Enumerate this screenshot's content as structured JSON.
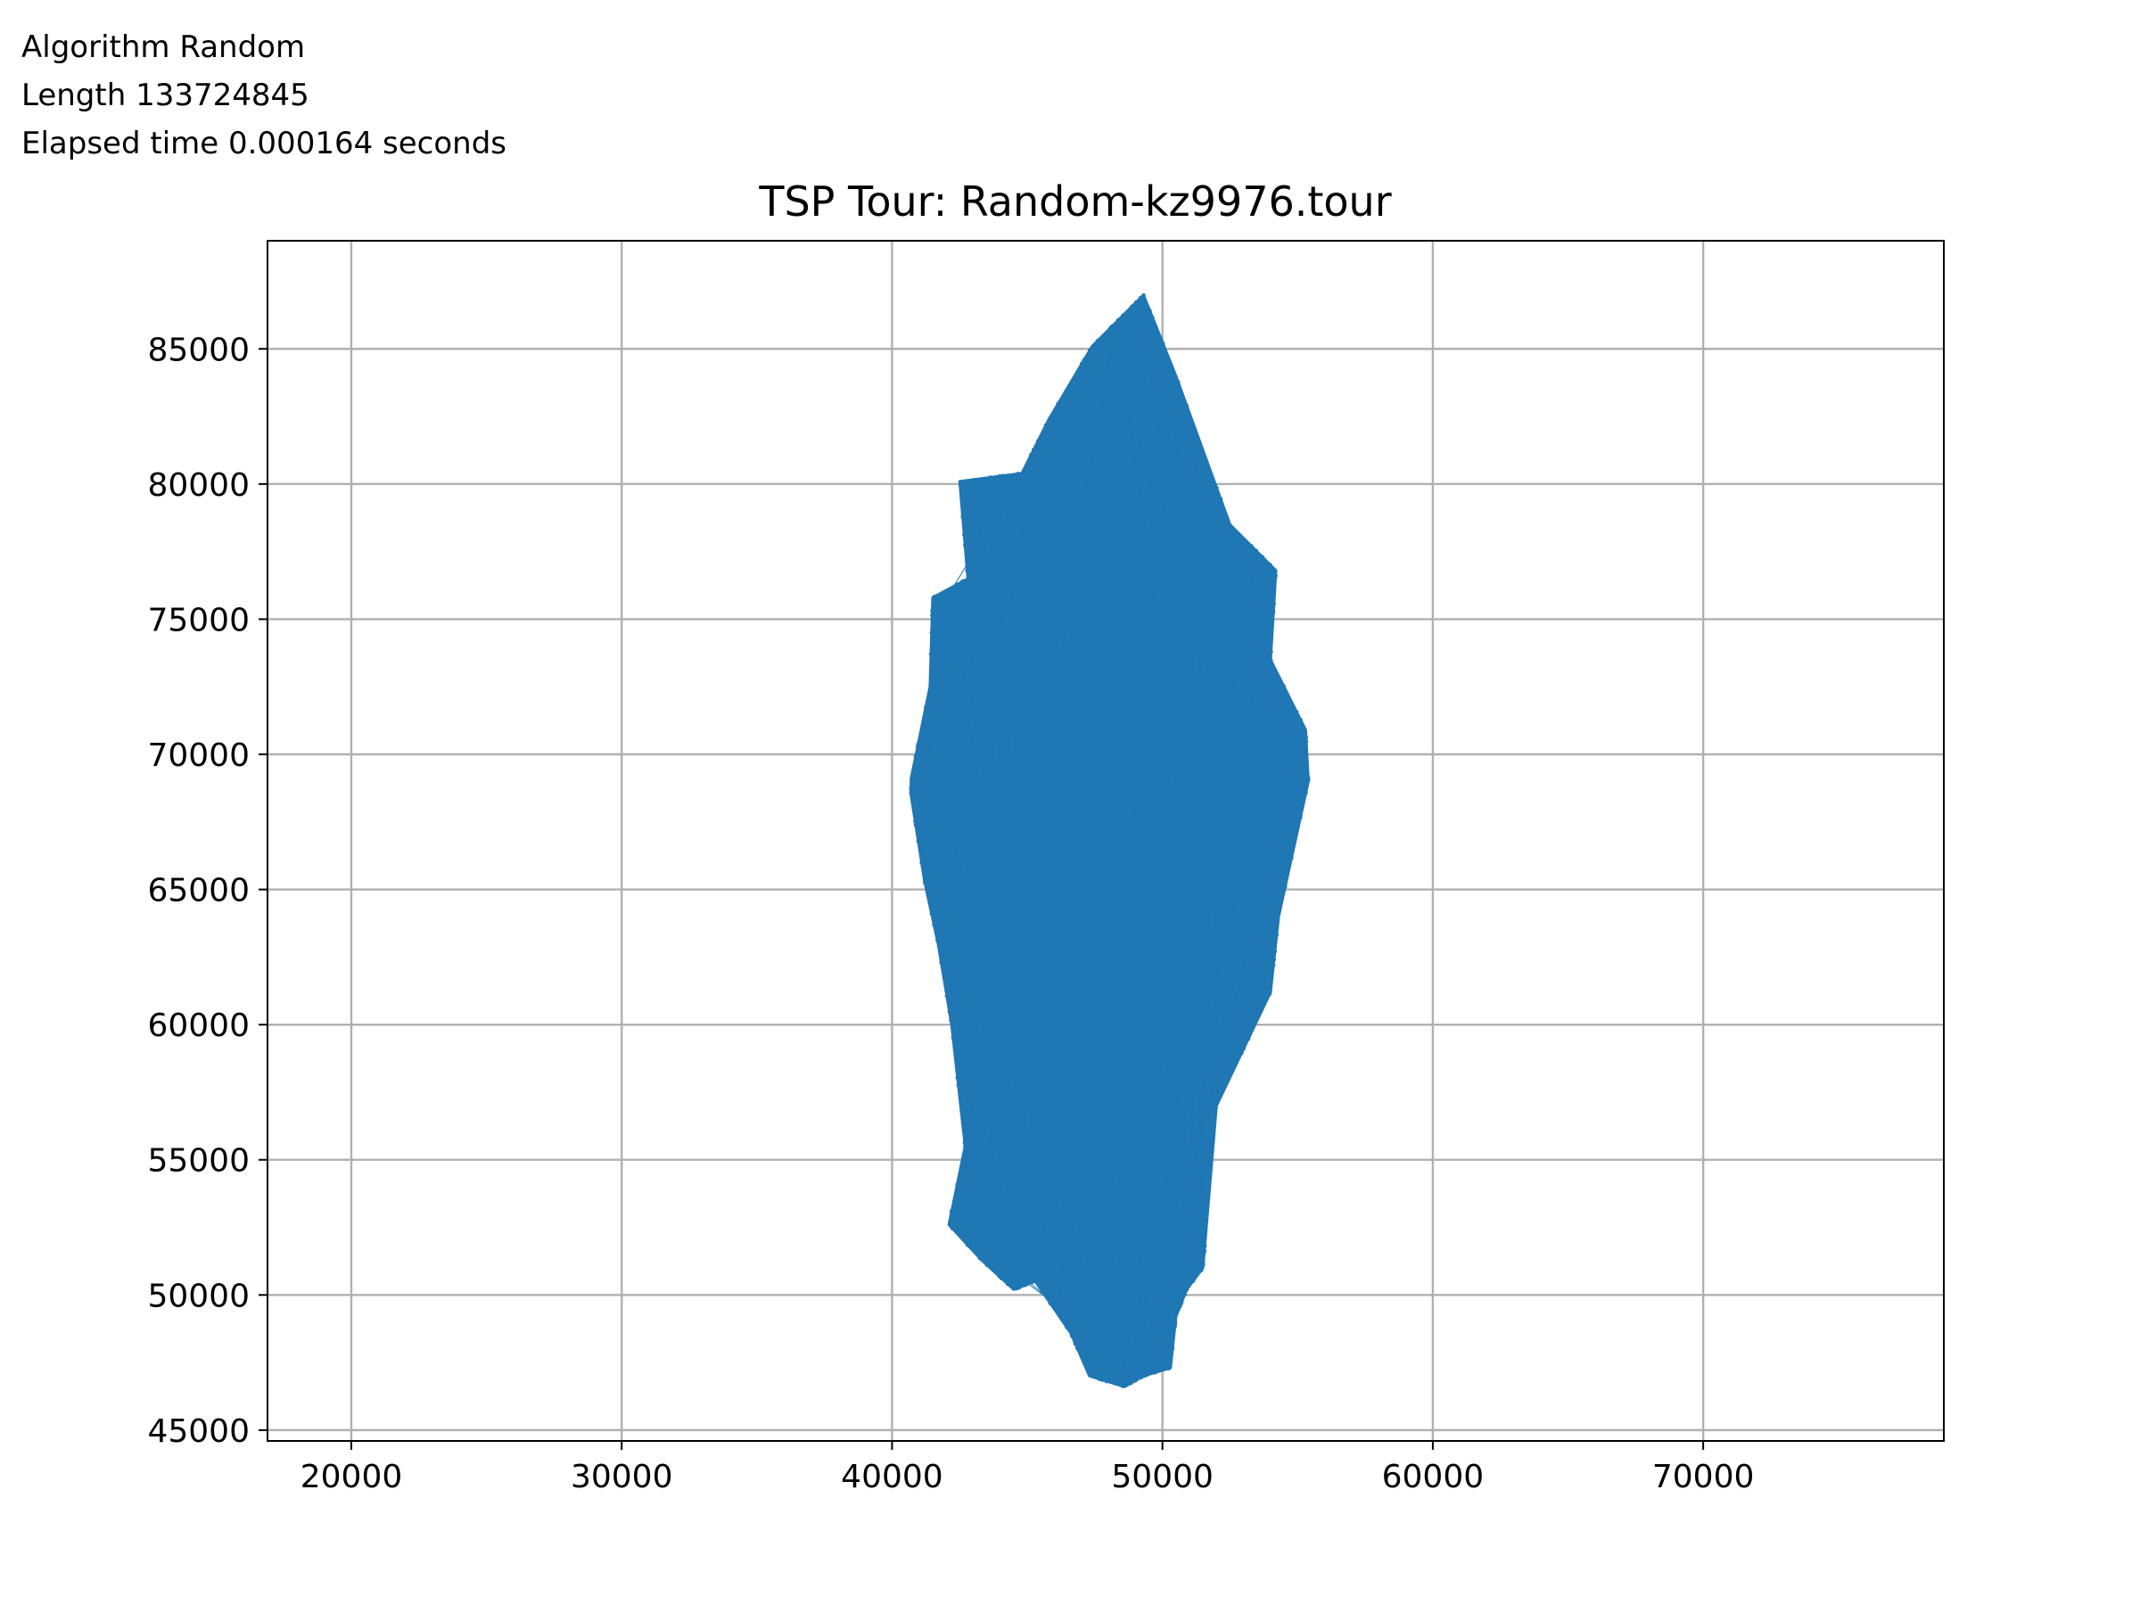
{
  "info": {
    "algorithm_line": "Algorithm Random",
    "length_line": "Length 133724845",
    "elapsed_line": "Elapsed time 0.000164 seconds"
  },
  "chart_data": {
    "type": "line",
    "title": "TSP Tour: Random-kz9976.tour",
    "xlabel": "",
    "ylabel": "",
    "xlim": [
      16900,
      78900
    ],
    "ylim": [
      44600,
      89000
    ],
    "xticks": [
      20000,
      30000,
      40000,
      50000,
      60000,
      70000
    ],
    "yticks": [
      45000,
      50000,
      55000,
      60000,
      65000,
      70000,
      75000,
      80000,
      85000
    ],
    "xtick_labels": [
      "20000",
      "30000",
      "40000",
      "50000",
      "60000",
      "70000"
    ],
    "ytick_labels": [
      "45000",
      "50000",
      "55000",
      "60000",
      "65000",
      "70000",
      "75000",
      "80000",
      "85000"
    ],
    "grid": true,
    "legend": "none",
    "series": [
      {
        "color": "#1f77b4",
        "marker": "point",
        "point_count": 9976,
        "region_outline": [
          [
            49300,
            87000
          ],
          [
            50500,
            84000
          ],
          [
            52500,
            78500
          ],
          [
            54200,
            76800
          ],
          [
            54000,
            73500
          ],
          [
            55300,
            70900
          ],
          [
            55400,
            69000
          ],
          [
            54300,
            64000
          ],
          [
            54000,
            61200
          ],
          [
            52000,
            57000
          ],
          [
            51500,
            51000
          ],
          [
            50900,
            50200
          ],
          [
            50500,
            49200
          ],
          [
            50300,
            47300
          ],
          [
            49300,
            47000
          ],
          [
            48600,
            46600
          ],
          [
            47300,
            47000
          ],
          [
            46600,
            48600
          ],
          [
            45300,
            50500
          ],
          [
            44500,
            50200
          ],
          [
            43300,
            51300
          ],
          [
            42100,
            52600
          ],
          [
            42700,
            55500
          ],
          [
            42200,
            60000
          ],
          [
            41700,
            63000
          ],
          [
            41200,
            65300
          ],
          [
            40700,
            68500
          ],
          [
            40700,
            69100
          ],
          [
            41400,
            72500
          ],
          [
            41500,
            75800
          ],
          [
            42800,
            76500
          ],
          [
            42500,
            80100
          ],
          [
            44800,
            80400
          ],
          [
            45800,
            82400
          ],
          [
            47400,
            85100
          ],
          [
            48400,
            86100
          ]
        ]
      }
    ]
  }
}
